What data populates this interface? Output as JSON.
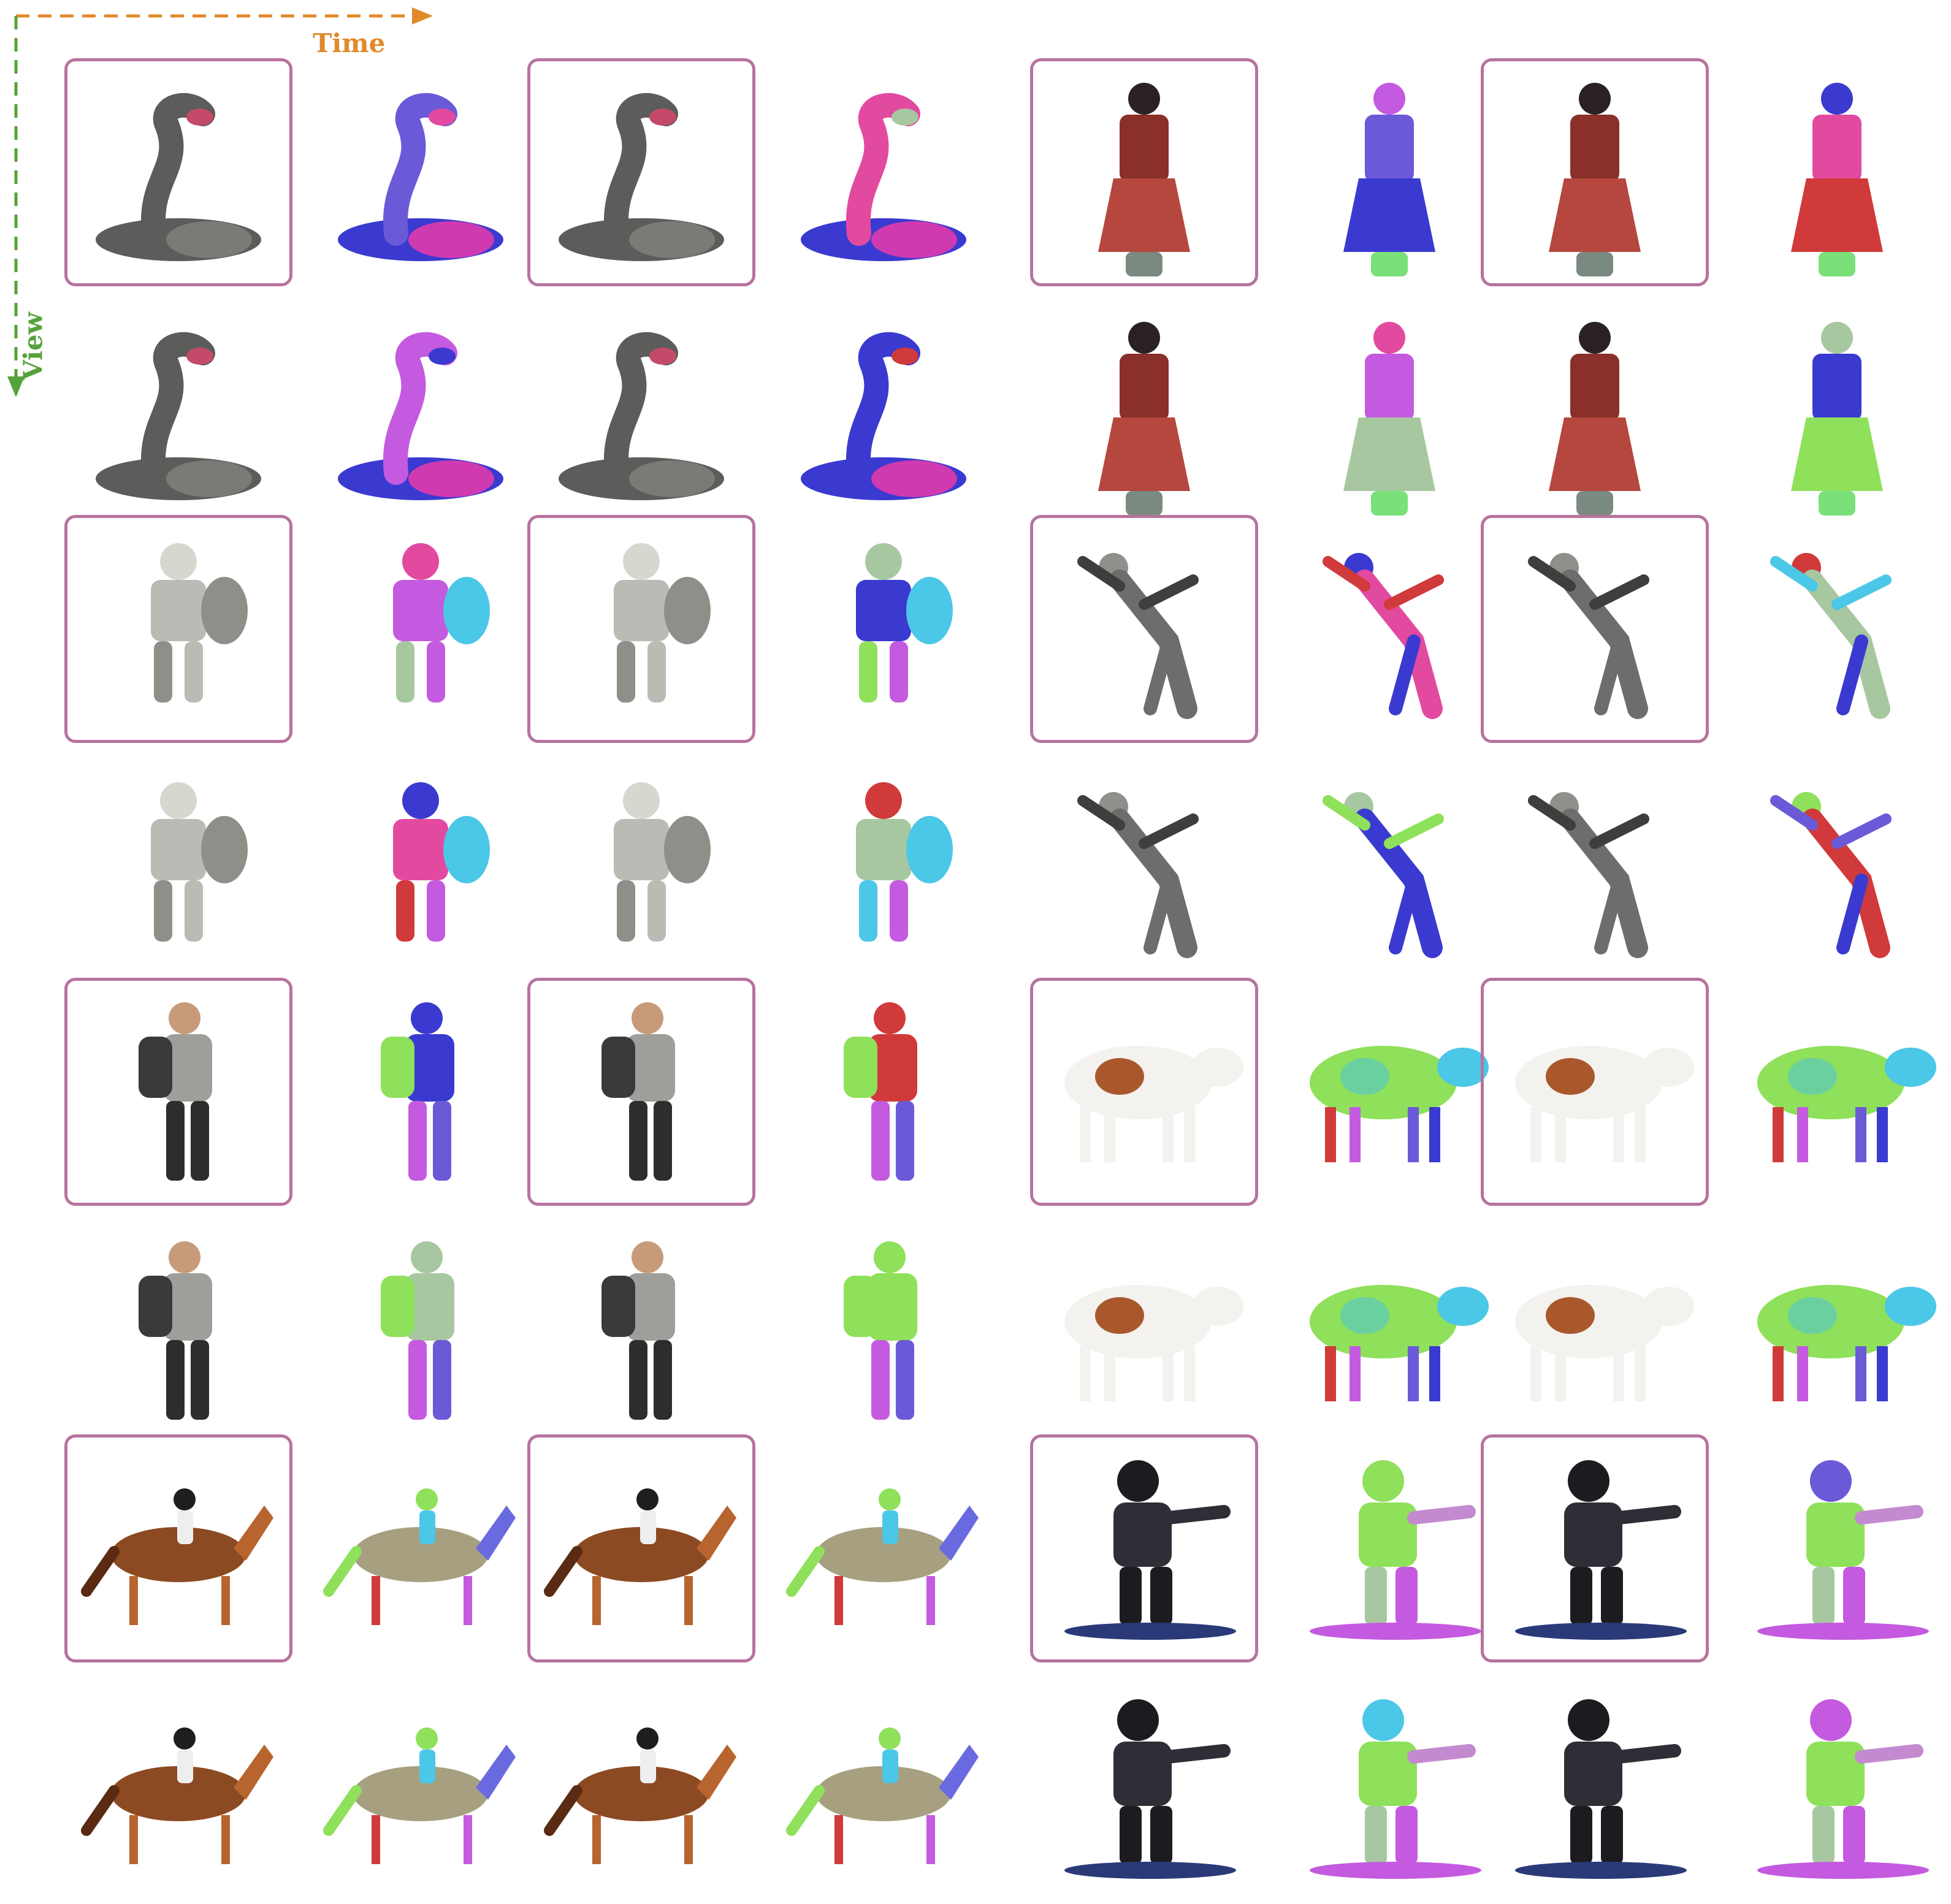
{
  "axes": {
    "time_label": "Time",
    "view_label": "View",
    "time_color": "#e08a2a",
    "view_color": "#56a23a",
    "frame_color": "#b7739d"
  },
  "figure": {
    "column_kinds": [
      "rgb",
      "flow",
      "rgb",
      "flow",
      "rgb",
      "flow",
      "rgb",
      "flow"
    ],
    "row_kinds": [
      "reference-view",
      "novel-view"
    ],
    "subjects": [
      {
        "name": "cobra-snake",
        "group": "left",
        "block": 0
      },
      {
        "name": "warrior-woman",
        "group": "right",
        "block": 0
      },
      {
        "name": "armored-knight",
        "group": "left",
        "block": 1
      },
      {
        "name": "falling-man",
        "group": "right",
        "block": 1
      },
      {
        "name": "hiker",
        "group": "left",
        "block": 2
      },
      {
        "name": "cow",
        "group": "right",
        "block": 2
      },
      {
        "name": "horse-rider",
        "group": "left",
        "block": 3
      },
      {
        "name": "snowboarder",
        "group": "right",
        "block": 3
      }
    ],
    "flow_palette": [
      "#8fe05a",
      "#4bc7e8",
      "#6a5ad8",
      "#c45adf",
      "#e24aa0",
      "#3a3ad0",
      "#a7c7a0",
      "#d03a3a"
    ]
  }
}
